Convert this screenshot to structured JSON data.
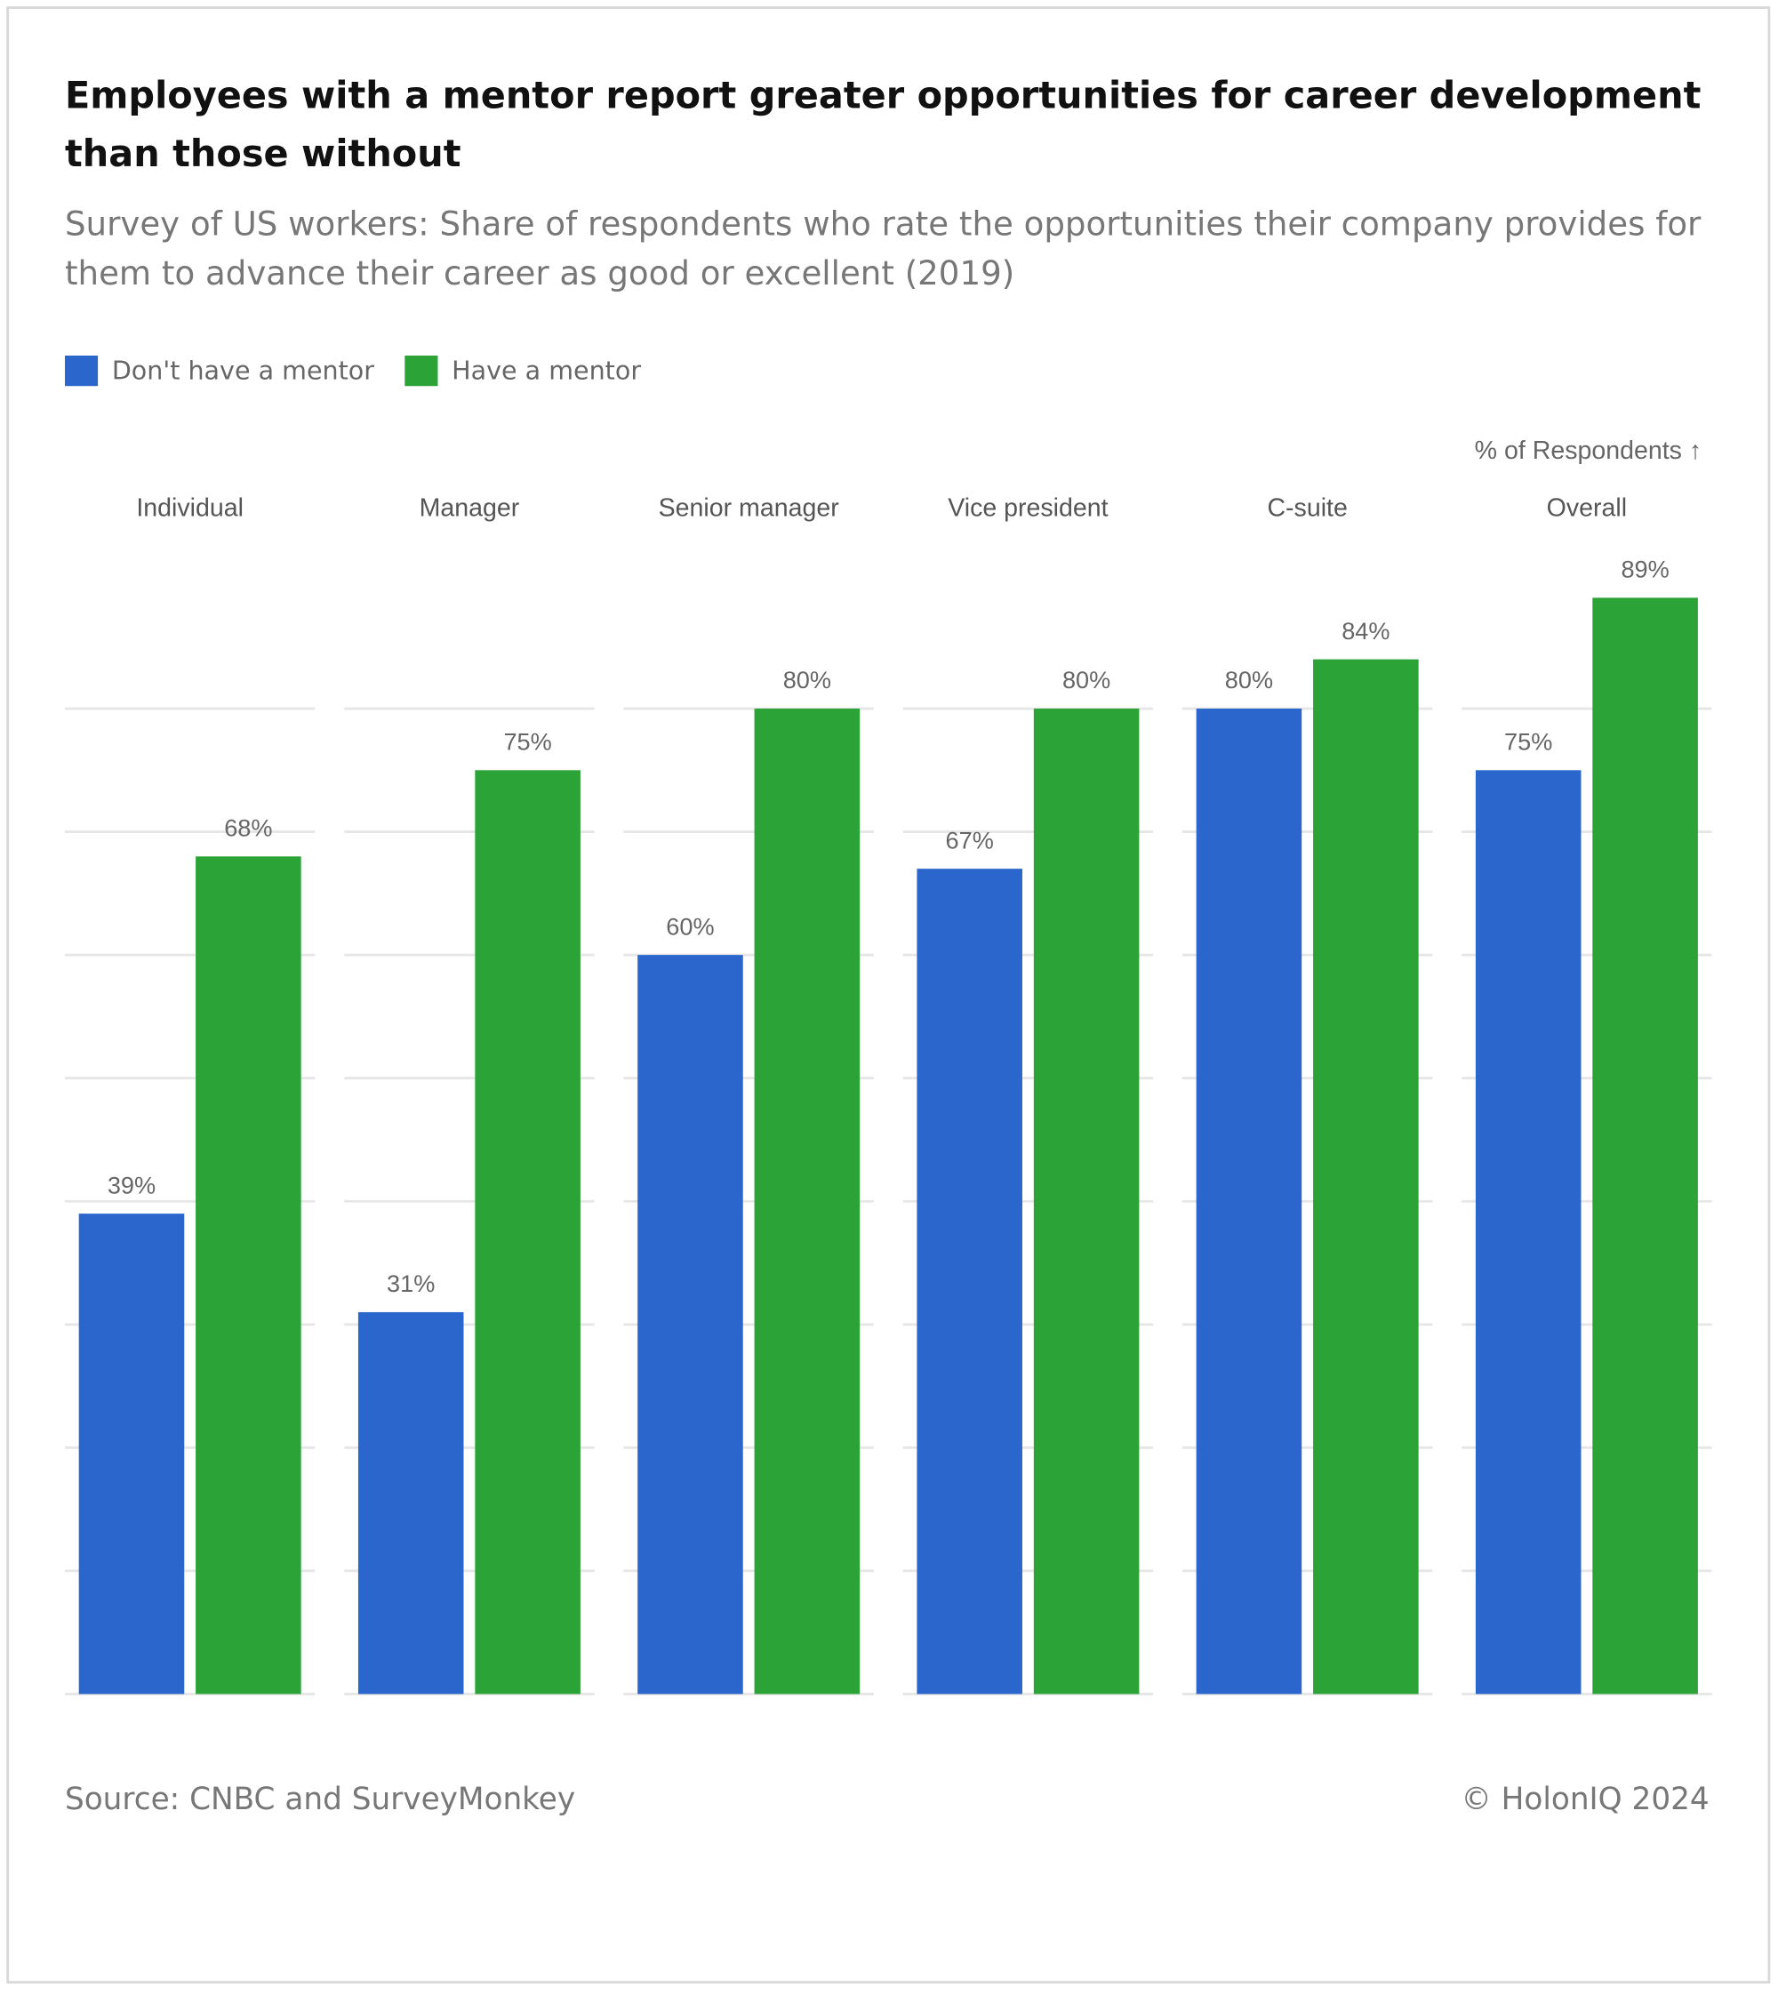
{
  "chart_data": {
    "type": "bar",
    "title": "Employees with a mentor report greater opportunities for career development than those without",
    "subtitle": "Survey of US workers: Share of respondents who rate the opportunities their company provides for them to advance their career as good or excellent (2019)",
    "y_axis_label": "% of Respondents ↑",
    "categories": [
      "Individual",
      "Manager",
      "Senior manager",
      "Vice president",
      "C-suite",
      "Overall"
    ],
    "series": [
      {
        "name": "Don't have a mentor",
        "color": "#2a66cc",
        "values": [
          39,
          31,
          60,
          67,
          80,
          75
        ],
        "value_labels": [
          "39%",
          "31%",
          "60%",
          "67%",
          "80%",
          "75%"
        ]
      },
      {
        "name": "Have a mentor",
        "color": "#2ba336",
        "values": [
          68,
          75,
          80,
          80,
          84,
          89
        ],
        "value_labels": [
          "68%",
          "75%",
          "80%",
          "80%",
          "84%",
          "89%"
        ]
      }
    ],
    "ylim": [
      0,
      90
    ],
    "yticks": [
      0,
      10,
      20,
      30,
      40,
      50,
      60,
      70,
      80
    ],
    "grid": true,
    "legend": "top-left",
    "source": "Source: CNBC and SurveyMonkey",
    "credit": "© HolonIQ 2024"
  }
}
